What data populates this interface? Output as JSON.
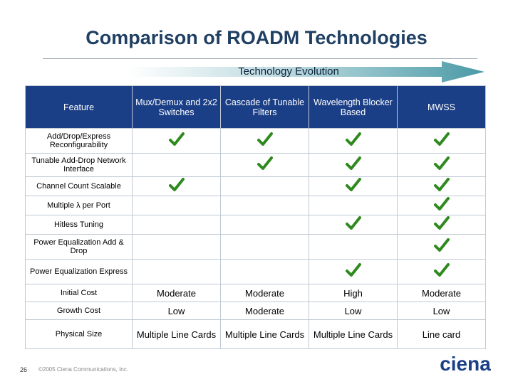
{
  "slide": {
    "title": "Comparison of ROADM Technologies",
    "arrow_label": "Technology Evolution",
    "page_number": "26",
    "copyright": "©2005 Ciena Communications, Inc.",
    "logo_text": "ciena",
    "accent_color": "#1b3f86",
    "check_color": "#2f8a1e"
  },
  "table": {
    "header_feature": "Feature",
    "columns": [
      "Mux/Demux and 2x2 Switches",
      "Cascade of Tunable Filters",
      "Wavelength Blocker Based",
      "MWSS"
    ],
    "features": [
      {
        "label": "Add/Drop/Express Reconfigurability",
        "checks": [
          true,
          true,
          true,
          true
        ]
      },
      {
        "label": "Tunable Add-Drop Network Interface",
        "checks": [
          false,
          true,
          true,
          true
        ]
      },
      {
        "label": "Channel Count Scalable",
        "checks": [
          true,
          false,
          true,
          true
        ]
      },
      {
        "label": "Multiple λ per Port",
        "checks": [
          false,
          false,
          false,
          true
        ]
      },
      {
        "label": "Hitless Tuning",
        "checks": [
          false,
          false,
          true,
          true
        ]
      },
      {
        "label": "Power Equalization Add & Drop",
        "checks": [
          false,
          false,
          false,
          true
        ]
      },
      {
        "label": "Power Equalization Express",
        "checks": [
          false,
          false,
          true,
          true
        ]
      }
    ],
    "value_rows": [
      {
        "label": "Initial Cost",
        "values": [
          "Moderate",
          "Moderate",
          "High",
          "Moderate"
        ]
      },
      {
        "label": "Growth Cost",
        "values": [
          "Low",
          "Moderate",
          "Low",
          "Low"
        ]
      },
      {
        "label": "Physical Size",
        "values": [
          "Multiple Line Cards",
          "Multiple Line Cards",
          "Multiple Line Cards",
          "Line card"
        ]
      }
    ]
  }
}
